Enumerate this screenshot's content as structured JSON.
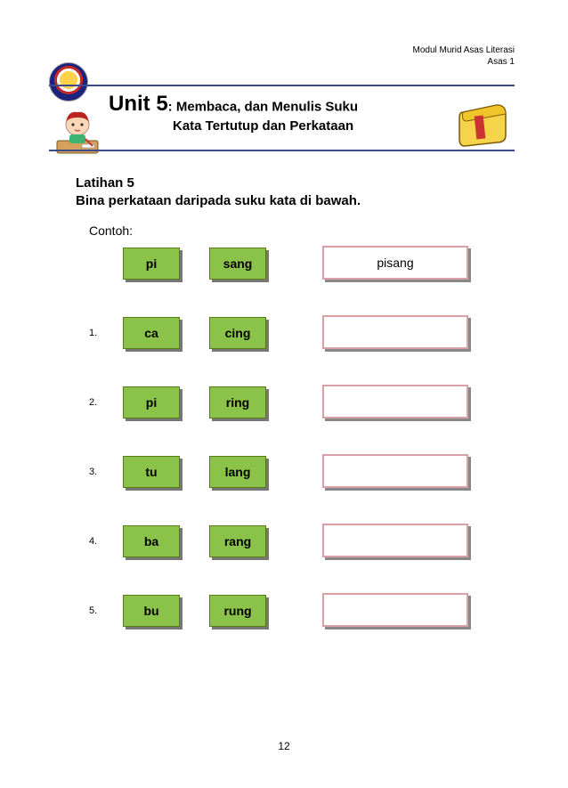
{
  "header": {
    "line1": "Modul Murid Asas Literasi",
    "line2": "Asas 1"
  },
  "unit": {
    "label": "Unit 5",
    "sub1": ": Membaca, dan Menulis Suku",
    "sub2": "Kata Tertutup dan Perkataan"
  },
  "latihan": {
    "title": "Latihan 5",
    "instruction": "Bina perkataan daripada suku kata di bawah."
  },
  "contoh_label": "Contoh:",
  "colors": {
    "tile_bg": "#8bc34a",
    "tile_border": "#5a7a1a",
    "answer_border": "#d9a0a5",
    "text": "#000000"
  },
  "rows": [
    {
      "num": "",
      "a": "pi",
      "b": "sang",
      "answer": "pisang"
    },
    {
      "num": "1.",
      "a": "ca",
      "b": "cing",
      "answer": ""
    },
    {
      "num": "2.",
      "a": "pi",
      "b": "ring",
      "answer": ""
    },
    {
      "num": "3.",
      "a": "tu",
      "b": "lang",
      "answer": ""
    },
    {
      "num": "4.",
      "a": "ba",
      "b": "rang",
      "answer": ""
    },
    {
      "num": "5.",
      "a": "bu",
      "b": "rung",
      "answer": ""
    }
  ],
  "page_number": "12"
}
